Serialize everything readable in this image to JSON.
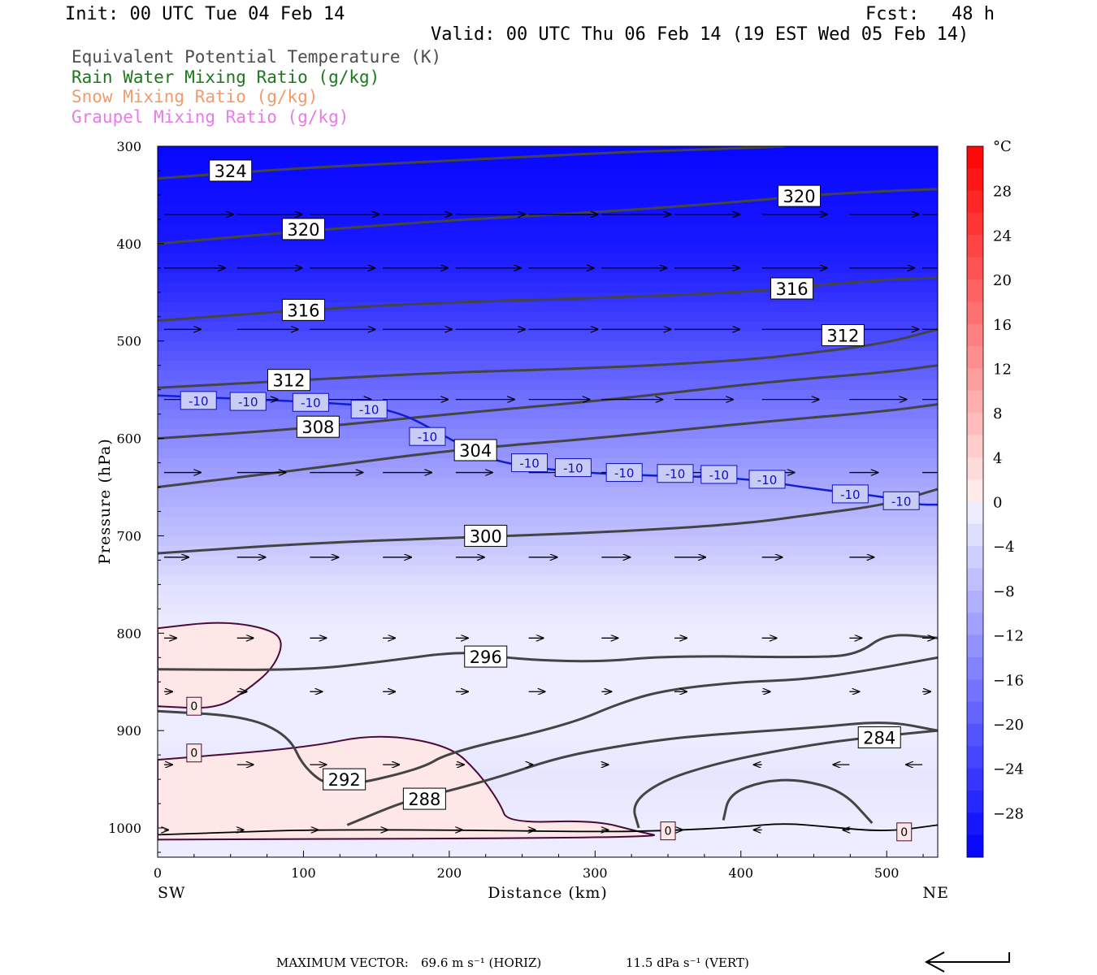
{
  "header": {
    "init": "Init: 00 UTC Tue 04 Feb 14",
    "fcst": "Fcst:   48 h",
    "valid": "Valid: 00 UTC Thu 06 Feb 14 (19 EST Wed 05 Feb 14)"
  },
  "legend": [
    {
      "text": "Equivalent Potential Temperature (K)",
      "color": "#4d4d4d"
    },
    {
      "text": "Rain Water Mixing Ratio (g/kg)",
      "color": "#1a7a1a"
    },
    {
      "text": "Snow Mixing Ratio (g/kg)",
      "color": "#f29b6a"
    },
    {
      "text": "Graupel Mixing Ratio (g/kg)",
      "color": "#e77be8"
    }
  ],
  "footer": {
    "max_vector_label": "MAXIMUM VECTOR:",
    "horiz": "69.6 m s⁻¹ (HORIZ)",
    "vert": "11.5 dPa s⁻¹ (VERT)"
  },
  "chart_data": {
    "type": "cross-section",
    "xlabel": "Distance (km)",
    "ylabel": "Pressure (hPa)",
    "xlim": [
      0,
      535
    ],
    "ylim": [
      1030,
      300
    ],
    "x_ticks": [
      0,
      100,
      200,
      300,
      400,
      500
    ],
    "y_ticks": [
      300,
      400,
      500,
      600,
      700,
      800,
      900,
      1000
    ],
    "x_end_labels": {
      "left": "SW",
      "right": "NE"
    },
    "colorbar": {
      "unit": "°C",
      "tick_labels": [
        "28",
        "24",
        "20",
        "16",
        "12",
        "8",
        "4",
        "0",
        "−4",
        "−8",
        "−12",
        "−16",
        "−20",
        "−24",
        "−28"
      ],
      "tick_values": [
        28,
        24,
        20,
        16,
        12,
        8,
        4,
        0,
        -4,
        -8,
        -12,
        -16,
        -20,
        -24,
        -28
      ],
      "range": [
        -32,
        32
      ],
      "step": 2
    },
    "temperature_shading": [
      {
        "p": 300,
        "t": -31
      },
      {
        "p": 400,
        "t": -29
      },
      {
        "p": 450,
        "t": -26
      },
      {
        "p": 500,
        "t": -22
      },
      {
        "p": 550,
        "t": -18
      },
      {
        "p": 600,
        "t": -14
      },
      {
        "p": 650,
        "t": -10
      },
      {
        "p": 700,
        "t": -7
      },
      {
        "p": 750,
        "t": -3
      },
      {
        "p": 800,
        "t": -1
      },
      {
        "p": 850,
        "t": -1
      },
      {
        "p": 900,
        "t": -1
      },
      {
        "p": 950,
        "t": -2
      },
      {
        "p": 1000,
        "t": -1
      }
    ],
    "warm_pockets": [
      {
        "name": "warm-pocket-upper",
        "points": [
          [
            0,
            795
          ],
          [
            40,
            788
          ],
          [
            70,
            793
          ],
          [
            87,
            805
          ],
          [
            80,
            835
          ],
          [
            60,
            860
          ],
          [
            40,
            878
          ],
          [
            0,
            875
          ]
        ]
      },
      {
        "name": "warm-pocket-lower",
        "points": [
          [
            0,
            930
          ],
          [
            100,
            918
          ],
          [
            150,
            903
          ],
          [
            200,
            915
          ],
          [
            220,
            943
          ],
          [
            235,
            975
          ],
          [
            240,
            995
          ],
          [
            300,
            992
          ],
          [
            330,
            1004
          ],
          [
            350,
            1010
          ],
          [
            0,
            1012
          ]
        ]
      }
    ],
    "theta_e_contours": [
      {
        "level": 324,
        "points": [
          [
            0,
            333
          ],
          [
            100,
            322
          ],
          [
            200,
            315
          ],
          [
            300,
            307
          ],
          [
            400,
            302
          ],
          [
            430,
            300
          ]
        ],
        "labels": [
          {
            "x": 50,
            "p": 325,
            "text": "324"
          }
        ]
      },
      {
        "level": 320,
        "points": [
          [
            0,
            400
          ],
          [
            100,
            387
          ],
          [
            200,
            376
          ],
          [
            300,
            368
          ],
          [
            400,
            357
          ],
          [
            450,
            350
          ],
          [
            500,
            346
          ],
          [
            535,
            344
          ]
        ],
        "labels": [
          {
            "x": 100,
            "p": 385,
            "text": "320"
          },
          {
            "x": 440,
            "p": 351,
            "text": "320"
          }
        ]
      },
      {
        "level": 316,
        "points": [
          [
            0,
            479
          ],
          [
            100,
            468
          ],
          [
            200,
            460
          ],
          [
            300,
            456
          ],
          [
            400,
            450
          ],
          [
            450,
            443
          ],
          [
            500,
            437
          ],
          [
            535,
            435
          ]
        ],
        "labels": [
          {
            "x": 100,
            "p": 468,
            "text": "316"
          },
          {
            "x": 435,
            "p": 446,
            "text": "316"
          }
        ]
      },
      {
        "level": 312,
        "points": [
          [
            0,
            548
          ],
          [
            100,
            540
          ],
          [
            200,
            532
          ],
          [
            300,
            528
          ],
          [
            400,
            520
          ],
          [
            450,
            512
          ],
          [
            500,
            502
          ],
          [
            535,
            488
          ]
        ],
        "labels": [
          {
            "x": 90,
            "p": 540,
            "text": "312"
          },
          {
            "x": 470,
            "p": 494,
            "text": "312"
          }
        ]
      },
      {
        "level": 308,
        "points": [
          [
            0,
            600
          ],
          [
            100,
            590
          ],
          [
            200,
            575
          ],
          [
            300,
            562
          ],
          [
            400,
            545
          ],
          [
            450,
            538
          ],
          [
            500,
            532
          ],
          [
            535,
            525
          ]
        ],
        "labels": [
          {
            "x": 110,
            "p": 588,
            "text": "308"
          }
        ]
      },
      {
        "level": 304,
        "points": [
          [
            0,
            650
          ],
          [
            100,
            632
          ],
          [
            200,
            612
          ],
          [
            300,
            600
          ],
          [
            400,
            585
          ],
          [
            500,
            572
          ],
          [
            535,
            565
          ]
        ],
        "labels": [
          {
            "x": 218,
            "p": 612,
            "text": "304"
          }
        ]
      },
      {
        "level": 300,
        "points": [
          [
            0,
            718
          ],
          [
            100,
            708
          ],
          [
            200,
            702
          ],
          [
            300,
            697
          ],
          [
            400,
            688
          ],
          [
            450,
            678
          ],
          [
            500,
            668
          ],
          [
            535,
            652
          ]
        ],
        "labels": [
          {
            "x": 225,
            "p": 700,
            "text": "300"
          }
        ]
      },
      {
        "level": 296,
        "points": [
          [
            0,
            837
          ],
          [
            100,
            838
          ],
          [
            150,
            830
          ],
          [
            210,
            818
          ],
          [
            240,
            826
          ],
          [
            300,
            830
          ],
          [
            350,
            823
          ],
          [
            450,
            825
          ],
          [
            480,
            822
          ],
          [
            500,
            800
          ],
          [
            535,
            805
          ]
        ],
        "labels": [
          {
            "x": 225,
            "p": 824,
            "text": "296"
          }
        ]
      },
      {
        "level": 292,
        "points": [
          [
            0,
            880
          ],
          [
            60,
            885
          ],
          [
            90,
            905
          ],
          [
            100,
            938
          ],
          [
            120,
            960
          ],
          [
            180,
            940
          ],
          [
            200,
            922
          ],
          [
            280,
            895
          ],
          [
            320,
            870
          ],
          [
            350,
            858
          ],
          [
            400,
            850
          ],
          [
            440,
            848
          ],
          [
            480,
            840
          ],
          [
            535,
            825
          ]
        ],
        "labels": [
          {
            "x": 128,
            "p": 950,
            "text": "292"
          }
        ]
      },
      {
        "level": 288,
        "points": [
          [
            130,
            997
          ],
          [
            170,
            972
          ],
          [
            200,
            962
          ],
          [
            240,
            945
          ],
          [
            270,
            930
          ],
          [
            300,
            920
          ],
          [
            350,
            908
          ],
          [
            400,
            902
          ],
          [
            450,
            897
          ],
          [
            500,
            890
          ],
          [
            535,
            900
          ]
        ],
        "labels": [
          {
            "x": 183,
            "p": 970,
            "text": "288"
          }
        ]
      },
      {
        "level": 284,
        "points": [
          [
            330,
            1000
          ],
          [
            325,
            975
          ],
          [
            345,
            952
          ],
          [
            380,
            935
          ],
          [
            420,
            922
          ],
          [
            460,
            912
          ],
          [
            500,
            905
          ],
          [
            535,
            900
          ]
        ],
        "labels": [
          {
            "x": 495,
            "p": 907,
            "text": "284"
          }
        ]
      },
      {
        "level": 0,
        "points": [
          [
            388,
            992
          ],
          [
            392,
            965
          ],
          [
            415,
            952
          ],
          [
            440,
            950
          ],
          [
            470,
            962
          ],
          [
            490,
            995
          ]
        ],
        "labels": []
      }
    ],
    "isotherm_minus10": {
      "points": [
        [
          0,
          556
        ],
        [
          100,
          562
        ],
        [
          160,
          568
        ],
        [
          200,
          600
        ],
        [
          230,
          625
        ],
        [
          300,
          637
        ],
        [
          400,
          640
        ],
        [
          450,
          652
        ],
        [
          500,
          660
        ],
        [
          520,
          668
        ],
        [
          535,
          668
        ]
      ],
      "labels": [
        {
          "x": 28,
          "p": 561,
          "text": "-10"
        },
        {
          "x": 62,
          "p": 562,
          "text": "-10"
        },
        {
          "x": 105,
          "p": 563,
          "text": "-10"
        },
        {
          "x": 145,
          "p": 570,
          "text": "-10"
        },
        {
          "x": 185,
          "p": 598,
          "text": "-10"
        },
        {
          "x": 255,
          "p": 625,
          "text": "-10"
        },
        {
          "x": 285,
          "p": 630,
          "text": "-10"
        },
        {
          "x": 320,
          "p": 635,
          "text": "-10"
        },
        {
          "x": 355,
          "p": 636,
          "text": "-10"
        },
        {
          "x": 385,
          "p": 637,
          "text": "-10"
        },
        {
          "x": 418,
          "p": 642,
          "text": "-10"
        },
        {
          "x": 475,
          "p": 657,
          "text": "-10"
        },
        {
          "x": 510,
          "p": 664,
          "text": "-10"
        }
      ]
    },
    "zero_isotherm_labels": [
      {
        "x": 25,
        "p": 875,
        "text": "0"
      },
      {
        "x": 25,
        "p": 923,
        "text": "0"
      },
      {
        "x": 350,
        "p": 1003,
        "text": "0"
      },
      {
        "x": 512,
        "p": 1004,
        "text": "0"
      }
    ],
    "surface_line": [
      [
        0,
        1007
      ],
      [
        60,
        1004
      ],
      [
        100,
        1002
      ],
      [
        200,
        1002
      ],
      [
        300,
        1004
      ],
      [
        350,
        1003
      ],
      [
        400,
        999
      ],
      [
        430,
        995
      ],
      [
        460,
        999
      ],
      [
        500,
        1004
      ],
      [
        535,
        997
      ]
    ],
    "wind_vectors": {
      "x": [
        0,
        50,
        100,
        150,
        200,
        250,
        300,
        350,
        410,
        470,
        520
      ],
      "levels": [
        {
          "p": 370,
          "lengths": [
            85,
            80,
            85,
            85,
            85,
            85,
            85,
            80,
            80,
            85,
            85
          ]
        },
        {
          "p": 425,
          "lengths": [
            75,
            80,
            80,
            80,
            80,
            80,
            80,
            80,
            80,
            80,
            70
          ]
        },
        {
          "p": 488,
          "lengths": [
            45,
            75,
            80,
            85,
            85,
            85,
            85,
            80,
            85,
            85,
            80
          ]
        },
        {
          "p": 560,
          "lengths": [
            45,
            50,
            75,
            80,
            72,
            75,
            75,
            72,
            70,
            70,
            45
          ]
        },
        {
          "p": 635,
          "lengths": [
            45,
            60,
            65,
            60,
            45,
            40,
            45,
            40,
            40,
            35,
            30
          ]
        },
        {
          "p": 722,
          "lengths": [
            30,
            35,
            35,
            35,
            35,
            35,
            35,
            38,
            25,
            30,
            0
          ]
        },
        {
          "p": 805,
          "lengths": [
            15,
            20,
            20,
            15,
            15,
            18,
            20,
            15,
            18,
            15,
            15
          ]
        },
        {
          "p": 860,
          "lengths": [
            10,
            12,
            15,
            15,
            15,
            20,
            12,
            15,
            10,
            12,
            10
          ]
        },
        {
          "p": 935,
          "lengths": [
            10,
            20,
            20,
            20,
            10,
            5,
            8,
            0,
            -10,
            -20,
            -20
          ]
        },
        {
          "p": 1002,
          "lengths": [
            5,
            8,
            10,
            6,
            8,
            8,
            8,
            10,
            -10,
            -8,
            0
          ]
        }
      ]
    }
  }
}
